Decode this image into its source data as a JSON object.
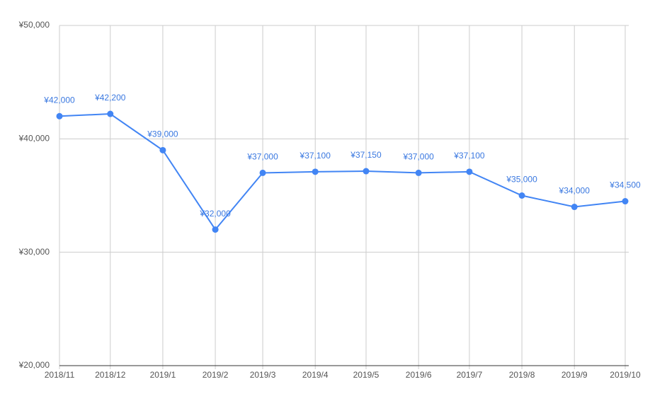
{
  "chart_data": {
    "type": "line",
    "categories": [
      "2018/11",
      "2018/12",
      "2019/1",
      "2019/2",
      "2019/3",
      "2019/4",
      "2019/5",
      "2019/6",
      "2019/7",
      "2019/8",
      "2019/9",
      "2019/10"
    ],
    "series": [
      {
        "color": "#4285f4",
        "values": [
          42000,
          42200,
          39000,
          32000,
          37000,
          37100,
          37150,
          37000,
          37100,
          35000,
          34000,
          34500
        ],
        "value_labels": [
          "¥42,000",
          "¥42,200",
          "¥39,000",
          "¥32,000",
          "¥37,000",
          "¥37,100",
          "¥37,150",
          "¥37,000",
          "¥37,100",
          "¥35,000",
          "¥34,000",
          "¥34,500"
        ]
      }
    ],
    "ylim": [
      20000,
      50000
    ],
    "yticks": [
      {
        "value": 20000,
        "label": "¥20,000"
      },
      {
        "value": 30000,
        "label": "¥30,000"
      },
      {
        "value": 40000,
        "label": "¥40,000"
      },
      {
        "value": 50000,
        "label": "¥50,000"
      }
    ],
    "grid": true
  }
}
